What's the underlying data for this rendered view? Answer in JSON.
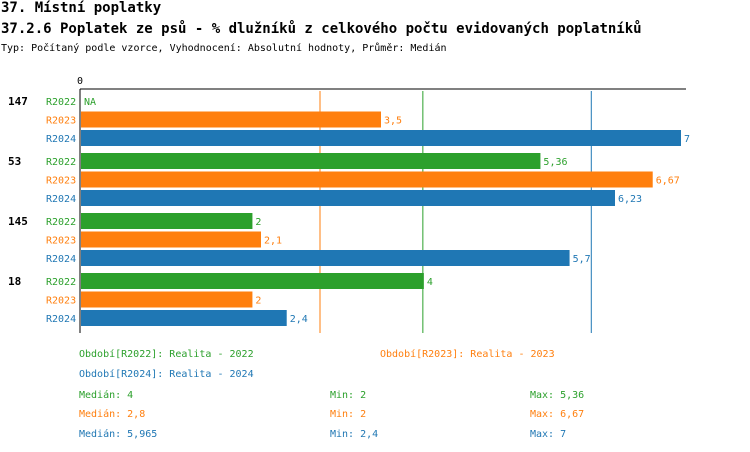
{
  "header": {
    "section": "37. Místní poplatky",
    "title": "37.2.6 Poplatek ze psů - % dlužníků z celkového počtu evidovaných poplatníků",
    "subtitle": "Typ: Počítaný podle vzorce, Vyhodnocení: Absolutní hodnoty, Průměr: Medián"
  },
  "chart_data": {
    "type": "bar",
    "orientation": "horizontal",
    "x_zero_label": "0",
    "xlim": [
      0,
      7
    ],
    "groups": [
      {
        "label": "147",
        "rows": [
          {
            "series": "R2022",
            "value": null,
            "label": "NA"
          },
          {
            "series": "R2023",
            "value": 3.5,
            "label": "3,5"
          },
          {
            "series": "R2024",
            "value": 7,
            "label": "7"
          }
        ]
      },
      {
        "label": "53",
        "rows": [
          {
            "series": "R2022",
            "value": 5.36,
            "label": "5,36"
          },
          {
            "series": "R2023",
            "value": 6.67,
            "label": "6,67"
          },
          {
            "series": "R2024",
            "value": 6.23,
            "label": "6,23"
          }
        ]
      },
      {
        "label": "145",
        "rows": [
          {
            "series": "R2022",
            "value": 2,
            "label": "2"
          },
          {
            "series": "R2023",
            "value": 2.1,
            "label": "2,1"
          },
          {
            "series": "R2024",
            "value": 5.7,
            "label": "5,7"
          }
        ]
      },
      {
        "label": "18",
        "rows": [
          {
            "series": "R2022",
            "value": 4,
            "label": "4"
          },
          {
            "series": "R2023",
            "value": 2,
            "label": "2"
          },
          {
            "series": "R2024",
            "value": 2.4,
            "label": "2,4"
          }
        ]
      }
    ],
    "series": [
      {
        "name": "R2022",
        "color": "#2ca02c",
        "median": 4,
        "min": 2,
        "max": 5.36
      },
      {
        "name": "R2023",
        "color": "#ff7f0e",
        "median": 2.8,
        "min": 2,
        "max": 6.67
      },
      {
        "name": "R2024",
        "color": "#1f77b4",
        "median": 5.965,
        "min": 2.4,
        "max": 7
      }
    ]
  },
  "legend": {
    "r2022": "Období[R2022]: Realita - 2022",
    "r2023": "Období[R2023]: Realita - 2023",
    "r2024": "Období[R2024]: Realita - 2024"
  },
  "stats": {
    "r2022": {
      "median": "Medián: 4",
      "min": "Min: 2",
      "max": "Max: 5,36"
    },
    "r2023": {
      "median": "Medián: 2,8",
      "min": "Min: 2",
      "max": "Max: 6,67"
    },
    "r2024": {
      "median": "Medián: 5,965",
      "min": "Min: 2,4",
      "max": "Max: 7"
    }
  }
}
